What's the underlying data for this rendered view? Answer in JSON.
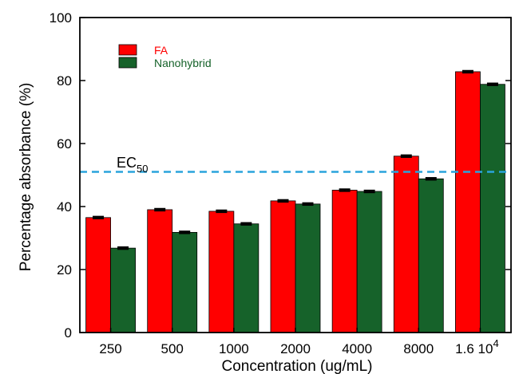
{
  "chart_data": {
    "type": "bar",
    "xlabel": "Concentration (ug/mL)",
    "ylabel": "Percentage absorbance (%)",
    "categories": [
      "250",
      "500",
      "1000",
      "2000",
      "4000",
      "8000",
      "1.6 10^4"
    ],
    "ylim": [
      0,
      100
    ],
    "yticks": [
      0,
      20,
      40,
      60,
      80,
      100
    ],
    "grid": false,
    "legend_position": "top-left",
    "series": [
      {
        "name": "FA",
        "color": "#ff0000",
        "values": [
          36.5,
          39,
          38.5,
          41.8,
          45.2,
          56,
          82.8
        ],
        "errors": [
          0.3,
          0.3,
          0.3,
          0.3,
          0.3,
          0.3,
          0.3
        ]
      },
      {
        "name": "Nanohybrid",
        "color": "#16622a",
        "values": [
          26.8,
          31.8,
          34.5,
          40.8,
          44.8,
          48.8,
          78.8
        ],
        "errors": [
          0.3,
          0.3,
          0.3,
          0.3,
          0.3,
          0.3,
          0.3
        ]
      }
    ],
    "reference_line": {
      "label_main": "EC",
      "label_sub": "50",
      "value": 51,
      "color": "#2aa4dc",
      "style": "dashed"
    },
    "last_category_display": {
      "base": "1.6 10",
      "exponent": "4"
    }
  }
}
